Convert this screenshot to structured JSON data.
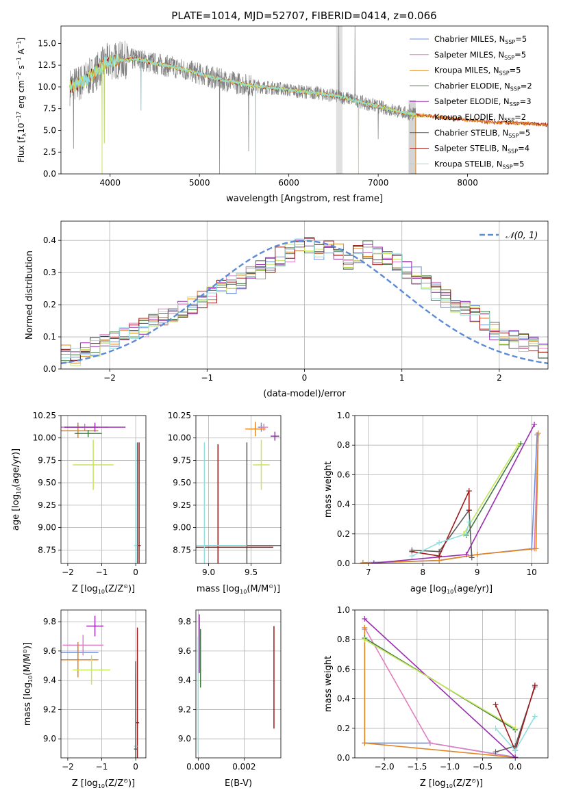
{
  "figure": {
    "colors": {
      "chabrier_miles": "#6d8fe0",
      "salpeter_miles": "#e07fbf",
      "kroupa_miles": "#e0861f",
      "chabrier_elodie": "#3e7b3e",
      "salpeter_elodie": "#9a2cb0",
      "kroupa_elodie": "#c7e65c",
      "chabrier_stelib": "#5a5a5a",
      "salpeter_stelib": "#9e1a1a",
      "kroupa_stelib": "#8fdede",
      "data_gray": "#7f7f7f",
      "normal_curve": "#5b8bd6",
      "grid": "#b0b0b0"
    }
  },
  "chart_data": [
    {
      "id": "spectrum",
      "type": "line",
      "title": "PLATE=1014, MJD=52707, FIBERID=0414, z=0.066",
      "xlabel": "wavelength [Angstrom, rest frame]",
      "ylabel_parts": [
        "Flux [f",
        "λ",
        "10",
        "−17",
        " erg cm",
        "−2",
        " s",
        "−1",
        " A",
        "−1",
        "]"
      ],
      "xlim": [
        3450,
        8900
      ],
      "ylim": [
        0,
        17
      ],
      "xticks": [
        "4000",
        "5000",
        "6000",
        "7000",
        "8000"
      ],
      "xtick_values": [
        4000,
        5000,
        6000,
        7000,
        8000
      ],
      "yticks": [
        "0.0",
        "2.5",
        "5.0",
        "7.5",
        "10.0",
        "12.5",
        "15.0"
      ],
      "ytick_values": [
        0,
        2.5,
        5,
        7.5,
        10,
        12.5,
        15
      ],
      "legend_position": "top-right",
      "legend": [
        {
          "name": "Chabrier MILES, N",
          "sub": "SSP",
          "tail": "=5",
          "color_key": "chabrier_miles"
        },
        {
          "name": "Salpeter MILES, N",
          "sub": "SSP",
          "tail": "=5",
          "color_key": "salpeter_miles"
        },
        {
          "name": "Kroupa MILES, N",
          "sub": "SSP",
          "tail": "=5",
          "color_key": "kroupa_miles"
        },
        {
          "name": "Chabrier ELODIE, N",
          "sub": "SSP",
          "tail": "=2",
          "color_key": "chabrier_elodie"
        },
        {
          "name": "Salpeter ELODIE, N",
          "sub": "SSP",
          "tail": "=3",
          "color_key": "salpeter_elodie"
        },
        {
          "name": "Kroupa ELODIE, N",
          "sub": "SSP",
          "tail": "=2",
          "color_key": "kroupa_elodie"
        },
        {
          "name": "Chabrier STELIB, N",
          "sub": "SSP",
          "tail": "=5",
          "color_key": "chabrier_stelib"
        },
        {
          "name": "Salpeter STELIB, N",
          "sub": "SSP",
          "tail": "=4",
          "color_key": "salpeter_stelib"
        },
        {
          "name": "Kroupa STELIB, N",
          "sub": "SSP",
          "tail": "=5",
          "color_key": "kroupa_stelib"
        }
      ],
      "continuum_wavelength": [
        3550,
        3650,
        3750,
        3850,
        3950,
        4050,
        4150,
        4300,
        4500,
        4700,
        4900,
        5100,
        5300,
        5500,
        5700,
        5900,
        6100,
        6300,
        6500,
        6700,
        6900,
        7100,
        7300,
        7420
      ],
      "continuum_flux": [
        10.0,
        10.4,
        11.0,
        11.8,
        12.8,
        13.0,
        13.1,
        13.2,
        12.7,
        12.3,
        11.8,
        11.2,
        10.7,
        10.3,
        10.0,
        9.8,
        9.5,
        9.3,
        9.0,
        8.6,
        8.0,
        7.5,
        7.0,
        6.8
      ],
      "model_extension_wavelength": [
        7420,
        7500,
        7600,
        7700,
        7800,
        7900,
        8000,
        8100,
        8200,
        8300,
        8400,
        8500,
        8600,
        8700,
        8800,
        8900
      ],
      "model_extension_flux": [
        6.8,
        6.7,
        6.6,
        6.5,
        6.4,
        6.3,
        6.2,
        6.1,
        6.0,
        5.95,
        5.9,
        5.85,
        5.8,
        5.75,
        5.7,
        5.65
      ],
      "absorption_dips": [
        {
          "wavelength": 3590,
          "flux": 2.9
        },
        {
          "wavelength": 3910,
          "flux": 0.0
        },
        {
          "wavelength": 3935,
          "flux": 3.5
        },
        {
          "wavelength": 4345,
          "flux": 7.3
        },
        {
          "wavelength": 5225,
          "flux": 0.0
        },
        {
          "wavelength": 5550,
          "flux": 2.6
        },
        {
          "wavelength": 5630,
          "flux": 0.0
        },
        {
          "wavelength": 6780,
          "flux": 0.0
        },
        {
          "wavelength": 7000,
          "flux": 4.0
        },
        {
          "wavelength": 7420,
          "flux": 0.0
        }
      ],
      "emission_spikes": [
        {
          "wavelength": 6560,
          "flux": 17.0
        },
        {
          "wavelength": 6740,
          "flux": 17.0
        },
        {
          "wavelength": 7350,
          "flux": 8.0
        }
      ]
    },
    {
      "id": "residuals",
      "type": "area",
      "xlabel": "(data-model)/error",
      "ylabel": "Normed distribution",
      "xlim": [
        -2.5,
        2.5
      ],
      "ylim": [
        0,
        0.46
      ],
      "xticks": [
        "−2",
        "−1",
        "0",
        "1",
        "2"
      ],
      "xtick_values": [
        -2,
        -1,
        0,
        1,
        2
      ],
      "yticks": [
        "0.0",
        "0.1",
        "0.2",
        "0.3",
        "0.4"
      ],
      "ytick_values": [
        0,
        0.1,
        0.2,
        0.3,
        0.4
      ],
      "legend_position": "top-right",
      "legend_label": "𝒩(0, 1)",
      "bin_width": 0.1,
      "bin_start": -2.5,
      "histogram_envelope": [
        0.05,
        0.04,
        0.06,
        0.07,
        0.08,
        0.09,
        0.1,
        0.12,
        0.13,
        0.15,
        0.16,
        0.17,
        0.19,
        0.2,
        0.22,
        0.23,
        0.25,
        0.26,
        0.27,
        0.3,
        0.31,
        0.33,
        0.35,
        0.36,
        0.38,
        0.39,
        0.37,
        0.38,
        0.36,
        0.34,
        0.36,
        0.37,
        0.35,
        0.34,
        0.33,
        0.31,
        0.29,
        0.26,
        0.24,
        0.22,
        0.2,
        0.19,
        0.17,
        0.15,
        0.12,
        0.1,
        0.09,
        0.08,
        0.07,
        0.06
      ],
      "curve": "normal(0,1)"
    },
    {
      "id": "age_vs_Z",
      "type": "scatter",
      "xlabel_parts": [
        "Z [log",
        "10",
        "(Z/Z",
        "⊙",
        ")]"
      ],
      "ylabel_parts": [
        "age  [log",
        "10",
        "(age/yr)]"
      ],
      "xlim": [
        -2.2,
        0.3
      ],
      "ylim": [
        8.6,
        10.25
      ],
      "xticks": [
        "−2",
        "−1",
        "0"
      ],
      "xtick_values": [
        -2,
        -1,
        0
      ],
      "yticks": [
        "8.75",
        "9.00",
        "9.25",
        "9.50",
        "9.75",
        "10.00",
        "10.25"
      ],
      "ytick_values": [
        8.75,
        9.0,
        9.25,
        9.5,
        9.75,
        10.0,
        10.25
      ],
      "points": [
        {
          "x": -1.7,
          "y": 10.12,
          "xerr": 0.6,
          "yerr": 0.05,
          "color_key": "chabrier_miles"
        },
        {
          "x": -1.5,
          "y": 10.12,
          "xerr": 0.7,
          "yerr": 0.04,
          "color_key": "salpeter_miles"
        },
        {
          "x": -1.7,
          "y": 10.08,
          "xerr": 0.6,
          "yerr": 0.08,
          "color_key": "kroupa_miles"
        },
        {
          "x": -1.25,
          "y": 9.7,
          "xerr": 0.6,
          "yerr": 0.28,
          "color_key": "kroupa_elodie"
        },
        {
          "x": -1.2,
          "y": 10.12,
          "xerr": 0.9,
          "yerr": 0.05,
          "color_key": "salpeter_elodie"
        },
        {
          "x": -1.4,
          "y": 10.05,
          "xerr": 0.4,
          "yerr": 0.04,
          "color_key": "chabrier_elodie"
        },
        {
          "x": 0.05,
          "y": 8.8,
          "xerr": 0.05,
          "yerr": 1.15,
          "color_key": "chabrier_stelib"
        },
        {
          "x": 0.1,
          "y": 8.8,
          "xerr": 0.05,
          "yerr": 1.15,
          "color_key": "salpeter_stelib"
        },
        {
          "x": 0.0,
          "y": 8.8,
          "xerr": 0.05,
          "yerr": 1.15,
          "color_key": "kroupa_stelib"
        }
      ]
    },
    {
      "id": "age_vs_mass",
      "type": "scatter",
      "xlabel_parts": [
        "mass [log",
        "10",
        "(M/M",
        "⊙",
        ")]"
      ],
      "xlim": [
        8.85,
        9.85
      ],
      "ylim": [
        8.6,
        10.25
      ],
      "xticks": [
        "9.0",
        "9.5"
      ],
      "xtick_values": [
        9.0,
        9.5
      ],
      "yticks": [
        "8.75",
        "9.00",
        "9.25",
        "9.50",
        "9.75",
        "10.00",
        "10.25"
      ],
      "ytick_values": [
        8.75,
        9.0,
        9.25,
        9.5,
        9.75,
        10.0,
        10.25
      ],
      "points": [
        {
          "x": 9.62,
          "y": 10.12,
          "xerr": 0.04,
          "yerr": 0.05,
          "color_key": "chabrier_miles"
        },
        {
          "x": 9.65,
          "y": 10.12,
          "xerr": 0.05,
          "yerr": 0.04,
          "color_key": "salpeter_miles"
        },
        {
          "x": 9.55,
          "y": 10.1,
          "xerr": 0.12,
          "yerr": 0.08,
          "color_key": "kroupa_miles"
        },
        {
          "x": 9.62,
          "y": 9.7,
          "xerr": 0.1,
          "yerr": 0.28,
          "color_key": "kroupa_elodie"
        },
        {
          "x": 9.78,
          "y": 10.02,
          "xerr": 0.05,
          "yerr": 0.05,
          "color_key": "salpeter_elodie"
        },
        {
          "x": 9.45,
          "y": 8.8,
          "xerr": 0.5,
          "yerr": 1.15,
          "color_key": "chabrier_stelib"
        },
        {
          "x": 9.11,
          "y": 8.78,
          "xerr": 0.65,
          "yerr": 1.15,
          "color_key": "salpeter_stelib"
        },
        {
          "x": 8.95,
          "y": 8.8,
          "xerr": 0.5,
          "yerr": 1.15,
          "color_key": "kroupa_stelib"
        }
      ]
    },
    {
      "id": "weight_vs_age",
      "type": "line",
      "xlabel_parts": [
        "age  [log",
        "10",
        "(age/yr)]"
      ],
      "ylabel": "mass weight",
      "xlim": [
        6.75,
        10.3
      ],
      "ylim": [
        0,
        1.0
      ],
      "xticks": [
        "7",
        "8",
        "9",
        "10"
      ],
      "xtick_values": [
        7,
        8,
        9,
        10
      ],
      "yticks": [
        "0.0",
        "0.2",
        "0.4",
        "0.6",
        "0.8",
        "1.0"
      ],
      "ytick_values": [
        0,
        0.2,
        0.4,
        0.6,
        0.8,
        1.0
      ],
      "series": [
        {
          "color_key": "chabrier_miles",
          "x": [
            6.9,
            8.3,
            9.0,
            10.0,
            10.1
          ],
          "y": [
            0.005,
            0.02,
            0.06,
            0.1,
            0.87
          ]
        },
        {
          "color_key": "salpeter_miles",
          "x": [
            6.9,
            8.3,
            9.0,
            10.05,
            10.12
          ],
          "y": [
            0.003,
            0.02,
            0.06,
            0.1,
            0.88
          ]
        },
        {
          "color_key": "kroupa_miles",
          "x": [
            6.9,
            8.3,
            9.0,
            10.08,
            10.12
          ],
          "y": [
            0.003,
            0.02,
            0.06,
            0.1,
            0.88
          ]
        },
        {
          "color_key": "chabrier_elodie",
          "x": [
            8.8,
            9.8
          ],
          "y": [
            0.19,
            0.81
          ]
        },
        {
          "color_key": "salpeter_elodie",
          "x": [
            7.1,
            8.8,
            10.05
          ],
          "y": [
            0.003,
            0.06,
            0.94
          ]
        },
        {
          "color_key": "kroupa_elodie",
          "x": [
            8.75,
            9.75
          ],
          "y": [
            0.2,
            0.8
          ]
        },
        {
          "color_key": "chabrier_stelib",
          "x": [
            7.8,
            8.3,
            8.85,
            8.9
          ],
          "y": [
            0.09,
            0.08,
            0.36,
            0.04
          ]
        },
        {
          "color_key": "salpeter_stelib",
          "x": [
            7.8,
            8.3,
            8.85,
            8.85
          ],
          "y": [
            0.08,
            0.05,
            0.49,
            0.36
          ]
        },
        {
          "color_key": "kroupa_stelib",
          "x": [
            7.8,
            8.3,
            8.8,
            8.85
          ],
          "y": [
            0.05,
            0.14,
            0.2,
            0.28
          ]
        }
      ]
    },
    {
      "id": "mass_vs_Z",
      "type": "scatter",
      "xlabel_parts": [
        "Z [log",
        "10",
        "(Z/Z",
        "⊙",
        ")]"
      ],
      "ylabel_parts": [
        "mass [log",
        "10",
        "(M/M",
        "⊙",
        ")]"
      ],
      "xlim": [
        -2.2,
        0.3
      ],
      "ylim": [
        8.87,
        9.88
      ],
      "xticks": [
        "−2",
        "−1",
        "0"
      ],
      "xtick_values": [
        -2,
        -1,
        0
      ],
      "yticks": [
        "9.0",
        "9.2",
        "9.4",
        "9.6",
        "9.8"
      ],
      "ytick_values": [
        9.0,
        9.2,
        9.4,
        9.6,
        9.8
      ],
      "points": [
        {
          "x": -1.7,
          "y": 9.59,
          "xerr": 0.6,
          "yerr": 0.05,
          "color_key": "chabrier_miles"
        },
        {
          "x": -1.55,
          "y": 9.64,
          "xerr": 0.6,
          "yerr": 0.07,
          "color_key": "salpeter_miles"
        },
        {
          "x": -1.7,
          "y": 9.54,
          "xerr": 0.6,
          "yerr": 0.12,
          "color_key": "kroupa_miles"
        },
        {
          "x": -1.3,
          "y": 9.47,
          "xerr": 0.55,
          "yerr": 0.1,
          "color_key": "kroupa_elodie"
        },
        {
          "x": -1.2,
          "y": 9.77,
          "xerr": 0.25,
          "yerr": 0.07,
          "color_key": "salpeter_elodie"
        },
        {
          "x": 0.05,
          "y": 9.11,
          "xerr": 0.05,
          "yerr": 0.65,
          "color_key": "salpeter_stelib"
        },
        {
          "x": 0.0,
          "y": 8.95,
          "xerr": 0.05,
          "yerr": 0.5,
          "color_key": "kroupa_stelib"
        },
        {
          "x": 0.0,
          "y": 8.93,
          "xerr": 0.05,
          "yerr": 0.6,
          "color_key": "chabrier_stelib"
        }
      ]
    },
    {
      "id": "mass_vs_ebv",
      "type": "scatter",
      "xlabel": "E(B-V)",
      "xlim": [
        -0.0001,
        0.0036
      ],
      "ylim": [
        8.87,
        9.88
      ],
      "xticks": [
        "0.000",
        "0.002"
      ],
      "xtick_values": [
        0,
        0.002
      ],
      "yticks": [
        "9.0",
        "9.2",
        "9.4",
        "9.6",
        "9.8"
      ],
      "ytick_values": [
        9.0,
        9.2,
        9.4,
        9.6,
        9.8
      ],
      "points": [
        {
          "x": 5e-05,
          "y": 9.65,
          "yerr": 0.2,
          "color_key": "salpeter_elodie"
        },
        {
          "x": 0.0001,
          "y": 9.55,
          "yerr": 0.2,
          "color_key": "chabrier_elodie"
        },
        {
          "x": 0.0,
          "y": 9.3,
          "yerr": 0.4,
          "color_key": "kroupa_stelib"
        },
        {
          "x": 0.0033,
          "y": 9.42,
          "yerr": 0.35,
          "color_key": "salpeter_stelib"
        }
      ]
    },
    {
      "id": "weight_vs_Z",
      "type": "line",
      "xlabel_parts": [
        "Z [log",
        "10",
        "(Z/Z",
        "⊙",
        ")]"
      ],
      "ylabel": "mass weight",
      "xlim": [
        -2.45,
        0.5
      ],
      "ylim": [
        0,
        1.0
      ],
      "xticks": [
        "−2.0",
        "−1.5",
        "−1.0",
        "−0.5",
        "0.0"
      ],
      "xtick_values": [
        -2.0,
        -1.5,
        -1.0,
        -0.5,
        0.0
      ],
      "yticks": [
        "0.0",
        "0.2",
        "0.4",
        "0.6",
        "0.8",
        "1.0"
      ],
      "ytick_values": [
        0,
        0.2,
        0.4,
        0.6,
        0.8,
        1.0
      ],
      "series": [
        {
          "color_key": "chabrier_miles",
          "x": [
            -2.3,
            -2.3,
            -1.3,
            0.0
          ],
          "y": [
            0.87,
            0.1,
            0.1,
            0.005
          ]
        },
        {
          "color_key": "salpeter_miles",
          "x": [
            -2.3,
            -1.3,
            0.0
          ],
          "y": [
            0.88,
            0.1,
            0.003
          ]
        },
        {
          "color_key": "kroupa_miles",
          "x": [
            -2.3,
            -2.3,
            0.0
          ],
          "y": [
            0.88,
            0.1,
            0.003
          ]
        },
        {
          "color_key": "chabrier_elodie",
          "x": [
            -2.3,
            0.0
          ],
          "y": [
            0.81,
            0.19
          ]
        },
        {
          "color_key": "salpeter_elodie",
          "x": [
            -2.3,
            0.0
          ],
          "y": [
            0.94,
            0.003
          ]
        },
        {
          "color_key": "kroupa_elodie",
          "x": [
            -2.3,
            0.0
          ],
          "y": [
            0.8,
            0.2
          ]
        },
        {
          "color_key": "chabrier_stelib",
          "x": [
            -0.3,
            0.0,
            0.3
          ],
          "y": [
            0.04,
            0.08,
            0.48
          ]
        },
        {
          "color_key": "salpeter_stelib",
          "x": [
            -0.3,
            0.0,
            0.3
          ],
          "y": [
            0.36,
            0.05,
            0.49
          ]
        },
        {
          "color_key": "kroupa_stelib",
          "x": [
            -0.3,
            0.0,
            0.3
          ],
          "y": [
            0.2,
            0.05,
            0.28
          ]
        }
      ]
    }
  ]
}
